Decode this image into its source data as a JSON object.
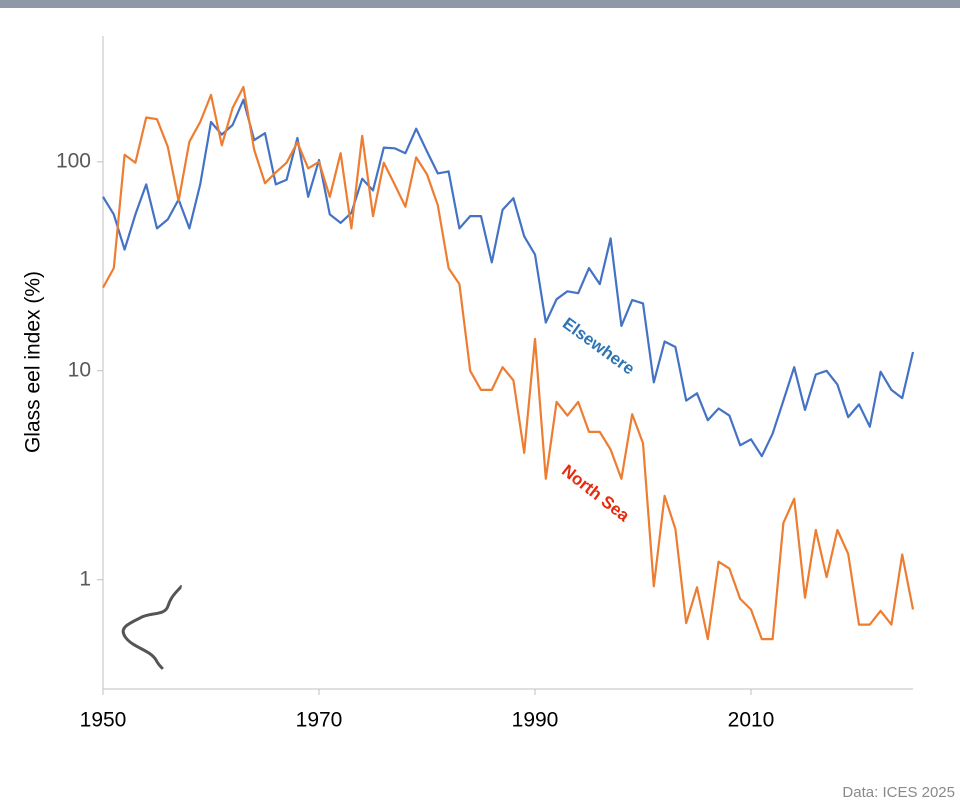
{
  "chart_data": {
    "type": "line",
    "y_label": "Glass eel index (%)",
    "source": "Data: ICES 2025",
    "log_scale_y": true,
    "x": [
      1950,
      1951,
      1952,
      1953,
      1954,
      1955,
      1956,
      1957,
      1958,
      1959,
      1960,
      1961,
      1962,
      1963,
      1964,
      1965,
      1966,
      1967,
      1968,
      1969,
      1970,
      1971,
      1972,
      1973,
      1974,
      1975,
      1976,
      1977,
      1978,
      1979,
      1980,
      1981,
      1982,
      1983,
      1984,
      1985,
      1986,
      1987,
      1988,
      1989,
      1990,
      1991,
      1992,
      1993,
      1994,
      1995,
      1996,
      1997,
      1998,
      1999,
      2000,
      2001,
      2002,
      2003,
      2004,
      2005,
      2006,
      2007,
      2008,
      2009,
      2010,
      2011,
      2012,
      2013,
      2014,
      2015,
      2016,
      2017,
      2018,
      2019,
      2020,
      2021,
      2022,
      2023,
      2024,
      2025
    ],
    "series": [
      {
        "name": "Elsewhere",
        "color": "#4472c4",
        "label_color": "#2e75b6",
        "values": [
          68,
          56,
          38,
          56,
          78,
          48,
          53,
          66,
          48,
          78,
          155,
          135,
          150,
          198,
          127,
          137,
          78,
          82,
          130,
          68,
          102,
          56,
          51,
          57,
          83,
          73,
          117,
          116,
          110,
          144,
          112,
          88,
          90,
          48,
          55,
          55,
          33,
          59,
          67,
          44,
          36,
          17,
          22,
          24,
          23.5,
          31,
          26,
          43,
          16.4,
          21.8,
          21,
          8.8,
          13.8,
          13,
          7.2,
          7.8,
          5.8,
          6.6,
          6.1,
          4.4,
          4.7,
          3.9,
          5,
          7.2,
          10.4,
          6.5,
          9.6,
          10,
          8.6,
          6,
          6.9,
          5.4,
          9.9,
          8.1,
          7.4,
          12.3
        ]
      },
      {
        "name": "North Sea",
        "color": "#ed7d31",
        "label_color": "#e8290b",
        "values": [
          25,
          31,
          108,
          99,
          163,
          160,
          118,
          65,
          125,
          155,
          209,
          120,
          181,
          228,
          114,
          79,
          89,
          99,
          124,
          93,
          100,
          68,
          110,
          48,
          133,
          55,
          99,
          78,
          61,
          105,
          87,
          62,
          31,
          26,
          10,
          8.1,
          8.1,
          10.4,
          9,
          4.05,
          14.2,
          3.04,
          7.1,
          6.1,
          7.1,
          5.1,
          5.1,
          4.2,
          3.04,
          6.2,
          4.5,
          0.93,
          2.52,
          1.75,
          0.62,
          0.92,
          0.52,
          1.22,
          1.13,
          0.81,
          0.72,
          0.52,
          0.52,
          1.87,
          2.44,
          0.82,
          1.73,
          1.03,
          1.73,
          1.33,
          0.61,
          0.61,
          0.71,
          0.61,
          1.32,
          0.72
        ]
      }
    ],
    "xlim": [
      1950,
      2025
    ],
    "xticks": [
      1950,
      1970,
      1990,
      2010
    ],
    "ylim": [
      0.3,
      400
    ],
    "yticks": [
      1,
      10,
      100
    ]
  }
}
